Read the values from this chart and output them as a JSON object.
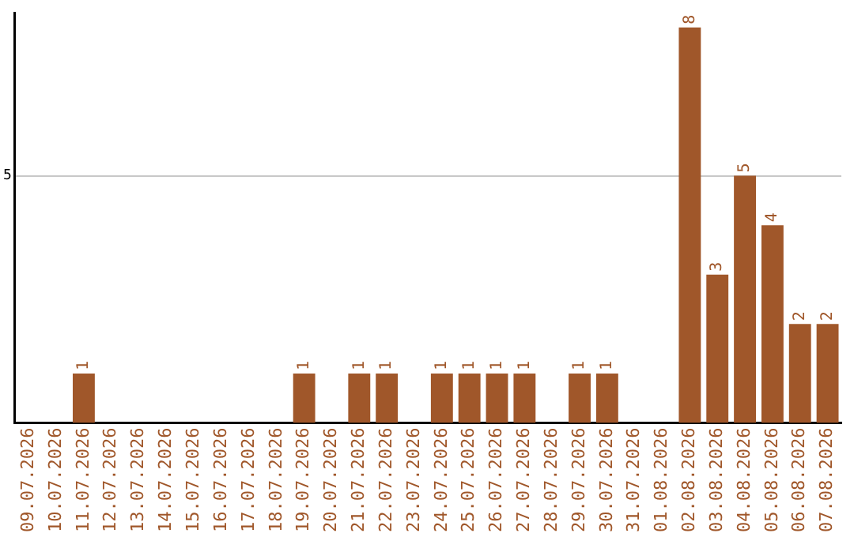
{
  "chart_data": {
    "type": "bar",
    "categories": [
      "09.07.2026",
      "10.07.2026",
      "11.07.2026",
      "12.07.2026",
      "13.07.2026",
      "14.07.2026",
      "15.07.2026",
      "16.07.2026",
      "17.07.2026",
      "18.07.2026",
      "19.07.2026",
      "20.07.2026",
      "21.07.2026",
      "22.07.2026",
      "23.07.2026",
      "24.07.2026",
      "25.07.2026",
      "26.07.2026",
      "27.07.2026",
      "28.07.2026",
      "29.07.2026",
      "30.07.2026",
      "31.07.2026",
      "01.08.2026",
      "02.08.2026",
      "03.08.2026",
      "04.08.2026",
      "05.08.2026",
      "06.08.2026",
      "07.08.2026"
    ],
    "values": [
      0,
      0,
      1,
      0,
      0,
      0,
      0,
      0,
      0,
      0,
      1,
      0,
      1,
      1,
      0,
      1,
      1,
      1,
      1,
      0,
      1,
      1,
      0,
      0,
      8,
      3,
      5,
      4,
      2,
      2
    ],
    "value_labels": [
      null,
      null,
      "1",
      null,
      null,
      null,
      null,
      null,
      null,
      null,
      "1",
      null,
      "1",
      "1",
      null,
      "1",
      "1",
      "1",
      "1",
      null,
      "1",
      "1",
      null,
      null,
      "8",
      "3",
      "5",
      "4",
      "2",
      "2"
    ],
    "color": "#a0572a",
    "ylim": [
      0,
      8.3
    ],
    "yticks": [
      5
    ],
    "grid": "y",
    "legend": false
  }
}
